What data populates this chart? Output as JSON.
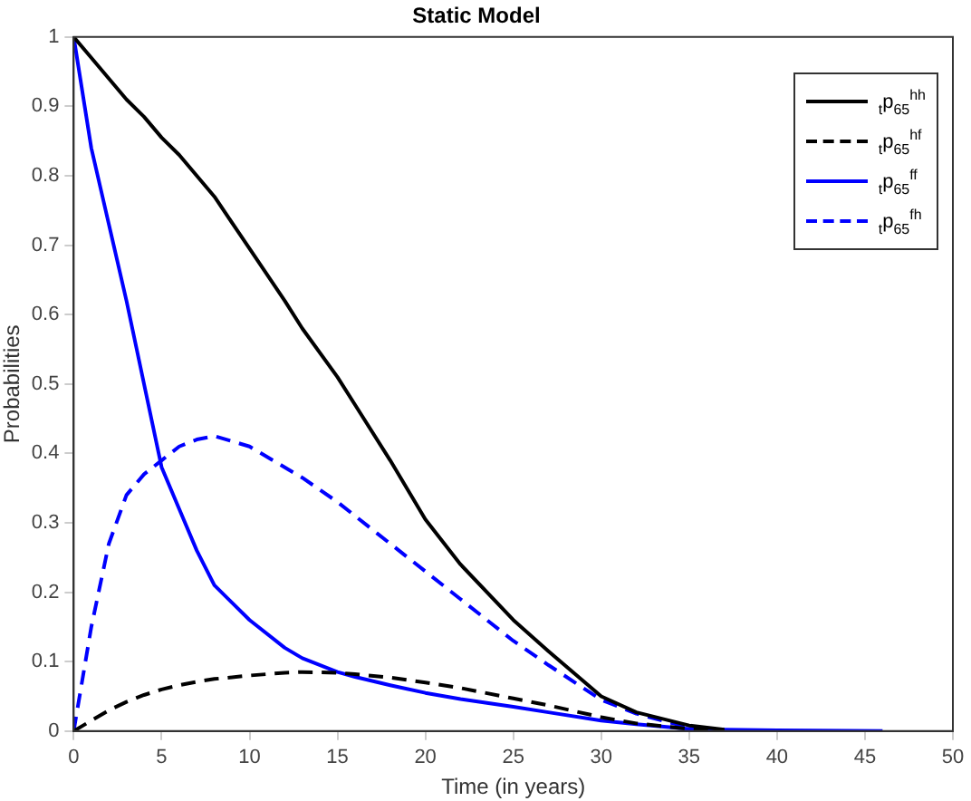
{
  "chart_data": {
    "type": "line",
    "title": "Static Model",
    "xlabel": "Time (in years)",
    "ylabel": "Probabilities",
    "x": [
      0,
      1,
      2,
      3,
      4,
      5,
      6,
      7,
      8,
      10,
      12,
      13,
      15,
      16,
      18,
      20,
      22,
      25,
      27,
      30,
      32,
      35,
      37,
      40,
      46
    ],
    "xlim": [
      0,
      50
    ],
    "xticks": [
      0,
      5,
      10,
      15,
      20,
      25,
      30,
      35,
      40,
      45,
      50
    ],
    "ylim": [
      0,
      1
    ],
    "yticks": [
      0,
      0.1,
      0.2,
      0.3,
      0.4,
      0.5,
      0.6,
      0.7,
      0.8,
      0.9,
      1
    ],
    "grid": false,
    "legend": "top right",
    "marker": "none",
    "series": [
      {
        "name": "$_{t}$p$_{65}$$^{hh}$",
        "color": "#000000",
        "line_style": "solid",
        "values": [
          1,
          0.97,
          0.94,
          0.91,
          0.885,
          0.855,
          0.83,
          0.8,
          0.77,
          0.695,
          0.62,
          0.58,
          0.51,
          0.47,
          0.39,
          0.305,
          0.24,
          0.16,
          0.115,
          0.05,
          0.027,
          0.008,
          0.002,
          null,
          null
        ]
      },
      {
        "name": "$_{t}$p$_{65}$$^{hf}$",
        "color": "#000000",
        "line_style": "dashed",
        "values": [
          0,
          0.015,
          0.03,
          0.042,
          0.052,
          0.06,
          0.066,
          0.071,
          0.075,
          0.08,
          0.084,
          0.085,
          0.084,
          0.082,
          0.077,
          0.07,
          0.062,
          0.047,
          0.037,
          0.02,
          0.011,
          0.003,
          0.001,
          null,
          null
        ]
      },
      {
        "name": "$_{t}$p$_{65}$$^{ff}$",
        "color": "#0000ff",
        "line_style": "solid",
        "values": [
          1,
          0.84,
          0.73,
          0.62,
          0.5,
          0.38,
          0.32,
          0.26,
          0.21,
          0.16,
          0.12,
          0.105,
          0.085,
          0.078,
          0.066,
          0.055,
          0.046,
          0.035,
          0.027,
          0.015,
          0.01,
          0.003,
          0.002,
          0.001,
          0
        ]
      },
      {
        "name": "$_{t}$p$_{65}$$^{fh}$",
        "color": "#0000ff",
        "line_style": "dashed",
        "values": [
          0,
          0.15,
          0.27,
          0.34,
          0.37,
          0.39,
          0.41,
          0.42,
          0.425,
          0.41,
          0.38,
          0.365,
          0.33,
          0.31,
          0.27,
          0.23,
          0.19,
          0.13,
          0.095,
          0.045,
          0.025,
          0.005,
          0.001,
          null,
          null
        ]
      }
    ]
  }
}
